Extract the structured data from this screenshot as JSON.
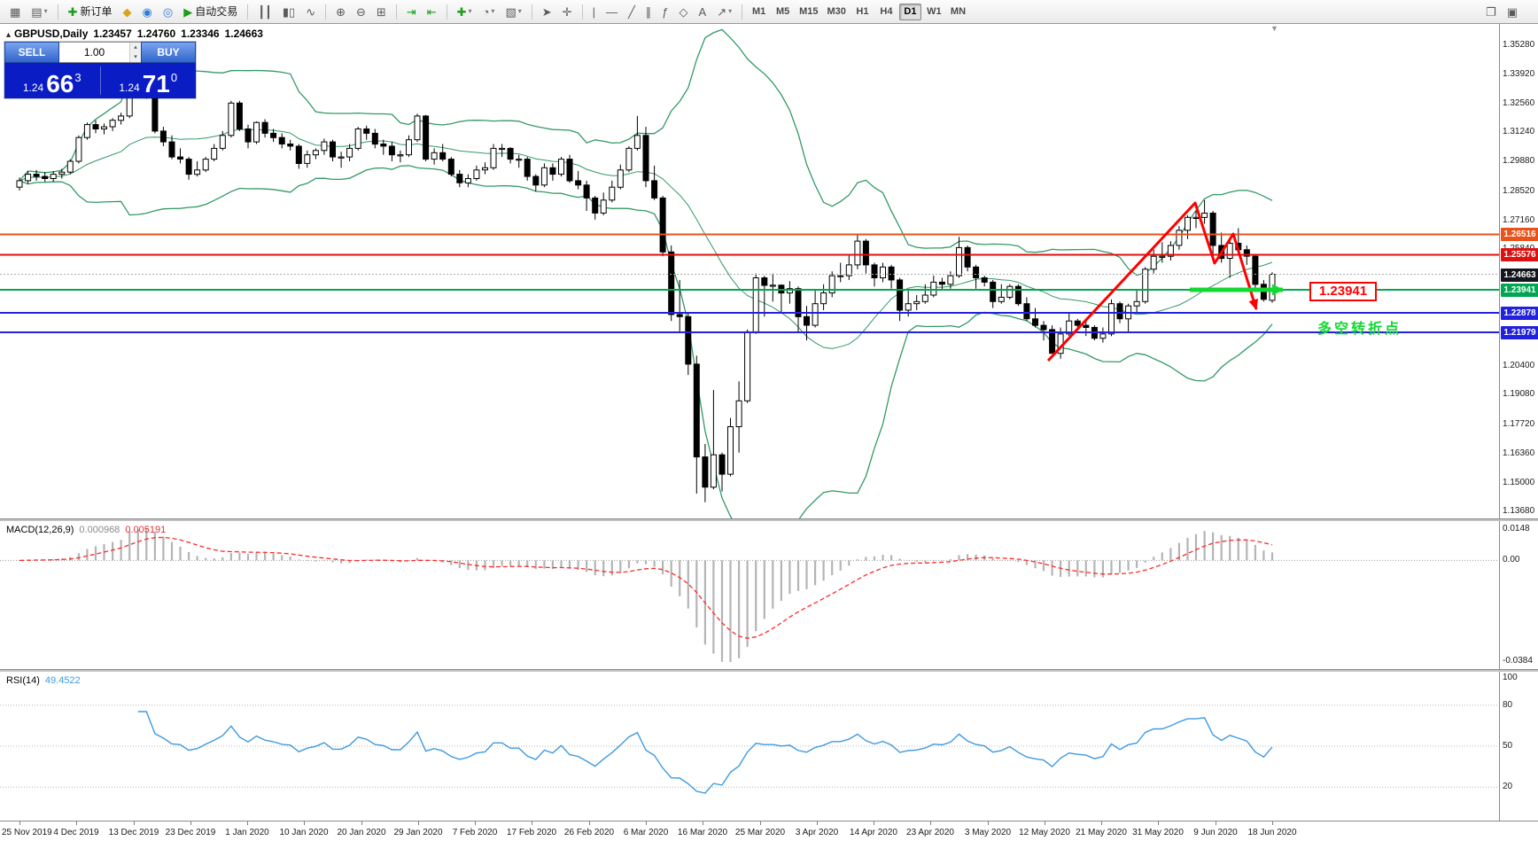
{
  "icons": {
    "caret_down": "▾",
    "spinner_up": "▴",
    "spinner_down": "▾",
    "one_click_toggle": "▴",
    "shift_marker": "▼"
  },
  "toolbar": {
    "items": [
      {
        "name": "new-chart",
        "glyph": "▦"
      },
      {
        "name": "profiles",
        "glyph": "▤",
        "caret": true
      },
      {
        "sep": true
      },
      {
        "name": "new-order",
        "glyph": "✚",
        "glyph_color": "#18a018",
        "label": "新订单"
      },
      {
        "name": "metaeditor",
        "glyph": "◆",
        "glyph_color": "#d9a41b"
      },
      {
        "name": "community",
        "glyph": "◉",
        "glyph_color": "#2f7bdb"
      },
      {
        "name": "market",
        "glyph": "◎",
        "glyph_color": "#2f7bdb"
      },
      {
        "name": "autotrading",
        "glyph": "▶",
        "glyph_color": "#18a018",
        "label": "自动交易"
      },
      {
        "sep": true
      },
      {
        "name": "bar-chart",
        "glyph": "┃┃"
      },
      {
        "name": "candlestick-chart",
        "glyph": "▮▯"
      },
      {
        "name": "line-chart",
        "glyph": "∿"
      },
      {
        "sep": true
      },
      {
        "name": "zoom-in",
        "glyph": "⊕"
      },
      {
        "name": "zoom-out",
        "glyph": "⊖"
      },
      {
        "name": "tile-windows",
        "glyph": "⊞"
      },
      {
        "sep": true
      },
      {
        "name": "auto-scroll",
        "glyph": "⇥",
        "glyph_color": "#18a018"
      },
      {
        "name": "chart-shift",
        "glyph": "⇤",
        "glyph_color": "#18a018"
      },
      {
        "sep": true
      },
      {
        "name": "indicators",
        "glyph": "✚",
        "glyph_color": "#18a018",
        "caret": true
      },
      {
        "name": "periods",
        "glyph": "◔",
        "caret": true
      },
      {
        "name": "templates",
        "glyph": "▧",
        "caret": true
      },
      {
        "sep": true
      },
      {
        "name": "cursor",
        "glyph": "➤"
      },
      {
        "name": "crosshair",
        "glyph": "✛"
      },
      {
        "sep": true
      },
      {
        "name": "vertical-line",
        "glyph": "|"
      },
      {
        "name": "horizontal-line",
        "glyph": "―"
      },
      {
        "name": "trendline",
        "glyph": "╱"
      },
      {
        "name": "channel",
        "glyph": "∥"
      },
      {
        "name": "fibonacci",
        "glyph": "ƒ"
      },
      {
        "name": "shapes",
        "glyph": "◇"
      },
      {
        "name": "text",
        "glyph": "A"
      },
      {
        "name": "arrows",
        "glyph": "↗",
        "caret": true
      },
      {
        "sep": true
      }
    ],
    "timeframes": [
      "M1",
      "M5",
      "M15",
      "M30",
      "H1",
      "H4",
      "D1",
      "W1",
      "MN"
    ],
    "active_timeframe": "D1",
    "right_items": [
      {
        "name": "full-screen",
        "glyph": "❐"
      },
      {
        "name": "print",
        "glyph": "▣"
      }
    ]
  },
  "trade_panel": {
    "sell_label": "SELL",
    "buy_label": "BUY",
    "volume": "1.00",
    "sell_price": {
      "prefix": "1.24",
      "big": "66",
      "sup": "3"
    },
    "buy_price": {
      "prefix": "1.24",
      "big": "71",
      "sup": "0"
    }
  },
  "chart_header": {
    "symbol": "GBPUSD,Daily",
    "open": "1.23457",
    "high": "1.24760",
    "low": "1.23346",
    "close": "1.24663"
  },
  "chart_data": {
    "type": "candlestick",
    "symbol": "GBPUSD",
    "period": "Daily",
    "price_axis_ticks": [
      1.3528,
      1.3392,
      1.3256,
      1.3124,
      1.2988,
      1.2852,
      1.2716,
      1.2584,
      1.204,
      1.1908,
      1.1772,
      1.1636,
      1.15,
      1.1368
    ],
    "x_labels": [
      "25 Nov 2019",
      "4 Dec 2019",
      "13 Dec 2019",
      "23 Dec 2019",
      "1 Jan 2020",
      "10 Jan 2020",
      "20 Jan 2020",
      "29 Jan 2020",
      "7 Feb 2020",
      "17 Feb 2020",
      "26 Feb 2020",
      "6 Mar 2020",
      "16 Mar 2020",
      "25 Mar 2020",
      "3 Apr 2020",
      "14 Apr 2020",
      "23 Apr 2020",
      "3 May 2020",
      "12 May 2020",
      "21 May 2020",
      "31 May 2020",
      "9 Jun 2020",
      "18 Jun 2020"
    ],
    "levels": [
      {
        "label": "1.26516",
        "value": 1.26516,
        "badge_color": "#e8531a",
        "line_color": "#e8531a",
        "width": 2
      },
      {
        "label": "1.25576",
        "value": 1.25576,
        "badge_color": "#dd1111",
        "line_color": "#dd1111",
        "width": 2
      },
      {
        "label": "1.24663",
        "value": 1.24663,
        "badge_color": "#15151d",
        "line_color": "#aaaaaa",
        "width": 1,
        "dash": "2 2"
      },
      {
        "label": "1.23941",
        "value": 1.23941,
        "badge_color": "#00a651",
        "line_color": "#00a651",
        "width": 2
      },
      {
        "label": "1.22878",
        "value": 1.22878,
        "badge_color": "#2222dd",
        "line_color": "#2222dd",
        "width": 2
      },
      {
        "label": "1.21979",
        "value": 1.21979,
        "badge_color": "#2222dd",
        "line_color": "#2222dd",
        "width": 2
      }
    ],
    "annotations": {
      "price_label": "1.23941",
      "price_label_color": "#ff0000",
      "note": "多空转折点",
      "note_color": "#12d832",
      "trend_color": "#ff0000",
      "segment_color": "#12d832"
    },
    "indicators": {
      "bollinger": {
        "period": 20,
        "deviation": 2,
        "color": "#339966"
      },
      "macd": {
        "label": "MACD(12,26,9)",
        "value_main": "0.000968",
        "value_signal": "0.005191",
        "axis_top": "0.0148",
        "axis_zero": "0.00",
        "axis_bottom": "-0.0384",
        "hist_color": "#b4b4b4",
        "signal_color": "#ff2a2a"
      },
      "rsi": {
        "label": "RSI(14)",
        "value": "49.4522",
        "period": 14,
        "color": "#3e9ae0",
        "axis": [
          {
            "label": "100",
            "value": 100
          },
          {
            "label": "80",
            "value": 80
          },
          {
            "label": "50",
            "value": 50
          },
          {
            "label": "20",
            "value": 20
          }
        ]
      }
    },
    "candles": [
      [
        1.287,
        1.2915,
        1.2855,
        1.29
      ],
      [
        1.29,
        1.2945,
        1.2885,
        1.293
      ],
      [
        1.293,
        1.295,
        1.29,
        1.292
      ],
      [
        1.292,
        1.294,
        1.2895,
        1.291
      ],
      [
        1.291,
        1.2945,
        1.2895,
        1.293
      ],
      [
        1.293,
        1.2955,
        1.291,
        1.294
      ],
      [
        1.294,
        1.3,
        1.293,
        1.299
      ],
      [
        1.299,
        1.311,
        1.298,
        1.31
      ],
      [
        1.31,
        1.317,
        1.309,
        1.316
      ],
      [
        1.316,
        1.318,
        1.312,
        1.314
      ],
      [
        1.314,
        1.3165,
        1.3115,
        1.315
      ],
      [
        1.315,
        1.319,
        1.313,
        1.318
      ],
      [
        1.318,
        1.3215,
        1.316,
        1.32
      ],
      [
        1.32,
        1.3516,
        1.319,
        1.35
      ],
      [
        1.35,
        1.3515,
        1.331,
        1.333
      ],
      [
        1.333,
        1.335,
        1.328,
        1.333
      ],
      [
        1.333,
        1.334,
        1.312,
        1.313
      ],
      [
        1.313,
        1.315,
        1.306,
        1.308
      ],
      [
        1.308,
        1.311,
        1.3,
        1.301
      ],
      [
        1.301,
        1.305,
        1.298,
        1.3
      ],
      [
        1.3,
        1.301,
        1.2905,
        1.293
      ],
      [
        1.293,
        1.299,
        1.292,
        1.295
      ],
      [
        1.295,
        1.301,
        1.294,
        1.3
      ],
      [
        1.3,
        1.307,
        1.299,
        1.305
      ],
      [
        1.305,
        1.313,
        1.304,
        1.311
      ],
      [
        1.311,
        1.327,
        1.31,
        1.326
      ],
      [
        1.326,
        1.327,
        1.313,
        1.314
      ],
      [
        1.314,
        1.316,
        1.305,
        1.308
      ],
      [
        1.308,
        1.3175,
        1.307,
        1.317
      ],
      [
        1.317,
        1.3185,
        1.31,
        1.312
      ],
      [
        1.312,
        1.314,
        1.308,
        1.31
      ],
      [
        1.31,
        1.312,
        1.305,
        1.307
      ],
      [
        1.307,
        1.309,
        1.304,
        1.306
      ],
      [
        1.306,
        1.307,
        1.2955,
        1.298
      ],
      [
        1.298,
        1.304,
        1.296,
        1.302
      ],
      [
        1.302,
        1.305,
        1.3,
        1.304
      ],
      [
        1.304,
        1.3095,
        1.302,
        1.308
      ],
      [
        1.308,
        1.309,
        1.299,
        1.301
      ],
      [
        1.301,
        1.3035,
        1.296,
        1.301
      ],
      [
        1.301,
        1.307,
        1.299,
        1.305
      ],
      [
        1.305,
        1.315,
        1.304,
        1.314
      ],
      [
        1.314,
        1.3155,
        1.309,
        1.312
      ],
      [
        1.312,
        1.314,
        1.305,
        1.307
      ],
      [
        1.307,
        1.309,
        1.302,
        1.306
      ],
      [
        1.306,
        1.308,
        1.299,
        1.302
      ],
      [
        1.302,
        1.304,
        1.2985,
        1.302
      ],
      [
        1.302,
        1.311,
        1.301,
        1.309
      ],
      [
        1.309,
        1.321,
        1.308,
        1.32
      ],
      [
        1.32,
        1.3205,
        1.299,
        1.3
      ],
      [
        1.3,
        1.305,
        1.2975,
        1.303
      ],
      [
        1.303,
        1.307,
        1.299,
        1.3
      ],
      [
        1.3,
        1.301,
        1.292,
        1.293
      ],
      [
        1.293,
        1.295,
        1.287,
        1.289
      ],
      [
        1.289,
        1.293,
        1.287,
        1.291
      ],
      [
        1.291,
        1.297,
        1.29,
        1.295
      ],
      [
        1.295,
        1.2985,
        1.293,
        1.296
      ],
      [
        1.296,
        1.307,
        1.295,
        1.305
      ],
      [
        1.305,
        1.307,
        1.301,
        1.305
      ],
      [
        1.305,
        1.3055,
        1.298,
        1.3
      ],
      [
        1.3,
        1.302,
        1.296,
        1.3
      ],
      [
        1.3,
        1.301,
        1.29,
        1.292
      ],
      [
        1.292,
        1.293,
        1.285,
        1.288
      ],
      [
        1.288,
        1.298,
        1.287,
        1.296
      ],
      [
        1.296,
        1.298,
        1.29,
        1.293
      ],
      [
        1.293,
        1.301,
        1.292,
        1.3
      ],
      [
        1.3,
        1.302,
        1.289,
        1.29
      ],
      [
        1.29,
        1.2945,
        1.286,
        1.288
      ],
      [
        1.288,
        1.29,
        1.276,
        1.282
      ],
      [
        1.282,
        1.283,
        1.272,
        1.275
      ],
      [
        1.275,
        1.2845,
        1.274,
        1.281
      ],
      [
        1.281,
        1.29,
        1.28,
        1.287
      ],
      [
        1.287,
        1.2975,
        1.286,
        1.295
      ],
      [
        1.295,
        1.306,
        1.294,
        1.305
      ],
      [
        1.305,
        1.32,
        1.304,
        1.311
      ],
      [
        1.311,
        1.315,
        1.287,
        1.29
      ],
      [
        1.29,
        1.297,
        1.281,
        1.282
      ],
      [
        1.282,
        1.283,
        1.255,
        1.257
      ],
      [
        1.257,
        1.26,
        1.225,
        1.228
      ],
      [
        1.228,
        1.244,
        1.22,
        1.227
      ],
      [
        1.227,
        1.229,
        1.2,
        1.205
      ],
      [
        1.205,
        1.209,
        1.145,
        1.162
      ],
      [
        1.162,
        1.168,
        1.141,
        1.148
      ],
      [
        1.148,
        1.193,
        1.147,
        1.163
      ],
      [
        1.163,
        1.164,
        1.146,
        1.154
      ],
      [
        1.154,
        1.18,
        1.153,
        1.176
      ],
      [
        1.176,
        1.197,
        1.164,
        1.188
      ],
      [
        1.188,
        1.221,
        1.187,
        1.22
      ],
      [
        1.22,
        1.247,
        1.219,
        1.245
      ],
      [
        1.245,
        1.246,
        1.227,
        1.2415
      ],
      [
        1.2415,
        1.247,
        1.234,
        1.2416
      ],
      [
        1.2416,
        1.242,
        1.229,
        1.238
      ],
      [
        1.238,
        1.2435,
        1.233,
        1.24
      ],
      [
        1.24,
        1.241,
        1.22,
        1.227
      ],
      [
        1.227,
        1.232,
        1.216,
        1.223
      ],
      [
        1.223,
        1.239,
        1.222,
        1.233
      ],
      [
        1.233,
        1.242,
        1.23,
        1.238
      ],
      [
        1.238,
        1.248,
        1.236,
        1.246
      ],
      [
        1.246,
        1.252,
        1.243,
        1.246
      ],
      [
        1.246,
        1.256,
        1.244,
        1.251
      ],
      [
        1.251,
        1.265,
        1.249,
        1.262
      ],
      [
        1.262,
        1.263,
        1.247,
        1.251
      ],
      [
        1.251,
        1.252,
        1.241,
        1.245
      ],
      [
        1.245,
        1.252,
        1.243,
        1.25
      ],
      [
        1.25,
        1.251,
        1.24,
        1.244
      ],
      [
        1.244,
        1.245,
        1.225,
        1.23
      ],
      [
        1.23,
        1.239,
        1.227,
        1.233
      ],
      [
        1.233,
        1.237,
        1.23,
        1.234
      ],
      [
        1.234,
        1.242,
        1.233,
        1.237
      ],
      [
        1.237,
        1.246,
        1.236,
        1.243
      ],
      [
        1.243,
        1.245,
        1.239,
        1.242
      ],
      [
        1.242,
        1.248,
        1.24,
        1.246
      ],
      [
        1.246,
        1.264,
        1.245,
        1.259
      ],
      [
        1.259,
        1.26,
        1.248,
        1.25
      ],
      [
        1.25,
        1.251,
        1.24,
        1.245
      ],
      [
        1.245,
        1.246,
        1.241,
        1.243
      ],
      [
        1.243,
        1.244,
        1.231,
        1.234
      ],
      [
        1.234,
        1.242,
        1.233,
        1.236
      ],
      [
        1.236,
        1.242,
        1.235,
        1.241
      ],
      [
        1.241,
        1.242,
        1.232,
        1.233
      ],
      [
        1.233,
        1.236,
        1.225,
        1.226
      ],
      [
        1.226,
        1.231,
        1.222,
        1.223
      ],
      [
        1.223,
        1.225,
        1.216,
        1.221
      ],
      [
        1.221,
        1.223,
        1.21,
        1.21
      ],
      [
        1.21,
        1.222,
        1.2075,
        1.219
      ],
      [
        1.219,
        1.229,
        1.218,
        1.225
      ],
      [
        1.225,
        1.226,
        1.221,
        1.223
      ],
      [
        1.223,
        1.225,
        1.218,
        1.222
      ],
      [
        1.222,
        1.223,
        1.216,
        1.217
      ],
      [
        1.217,
        1.222,
        1.215,
        1.219
      ],
      [
        1.219,
        1.235,
        1.218,
        1.233
      ],
      [
        1.233,
        1.234,
        1.224,
        1.226
      ],
      [
        1.226,
        1.233,
        1.22,
        1.232
      ],
      [
        1.232,
        1.239,
        1.229,
        1.234
      ],
      [
        1.234,
        1.25,
        1.233,
        1.249
      ],
      [
        1.249,
        1.258,
        1.247,
        1.255
      ],
      [
        1.255,
        1.2615,
        1.252,
        1.255
      ],
      [
        1.255,
        1.262,
        1.253,
        1.26
      ],
      [
        1.26,
        1.269,
        1.258,
        1.267
      ],
      [
        1.267,
        1.274,
        1.263,
        1.273
      ],
      [
        1.273,
        1.276,
        1.268,
        1.273
      ],
      [
        1.273,
        1.281,
        1.27,
        1.275
      ],
      [
        1.275,
        1.276,
        1.254,
        1.26
      ],
      [
        1.26,
        1.266,
        1.252,
        1.254
      ],
      [
        1.254,
        1.263,
        1.245,
        1.261
      ],
      [
        1.261,
        1.268,
        1.256,
        1.258
      ],
      [
        1.258,
        1.26,
        1.251,
        1.255
      ],
      [
        1.255,
        1.256,
        1.24,
        1.242
      ],
      [
        1.242,
        1.244,
        1.234,
        1.235
      ],
      [
        1.23457,
        1.2476,
        1.23346,
        1.24663
      ]
    ]
  }
}
